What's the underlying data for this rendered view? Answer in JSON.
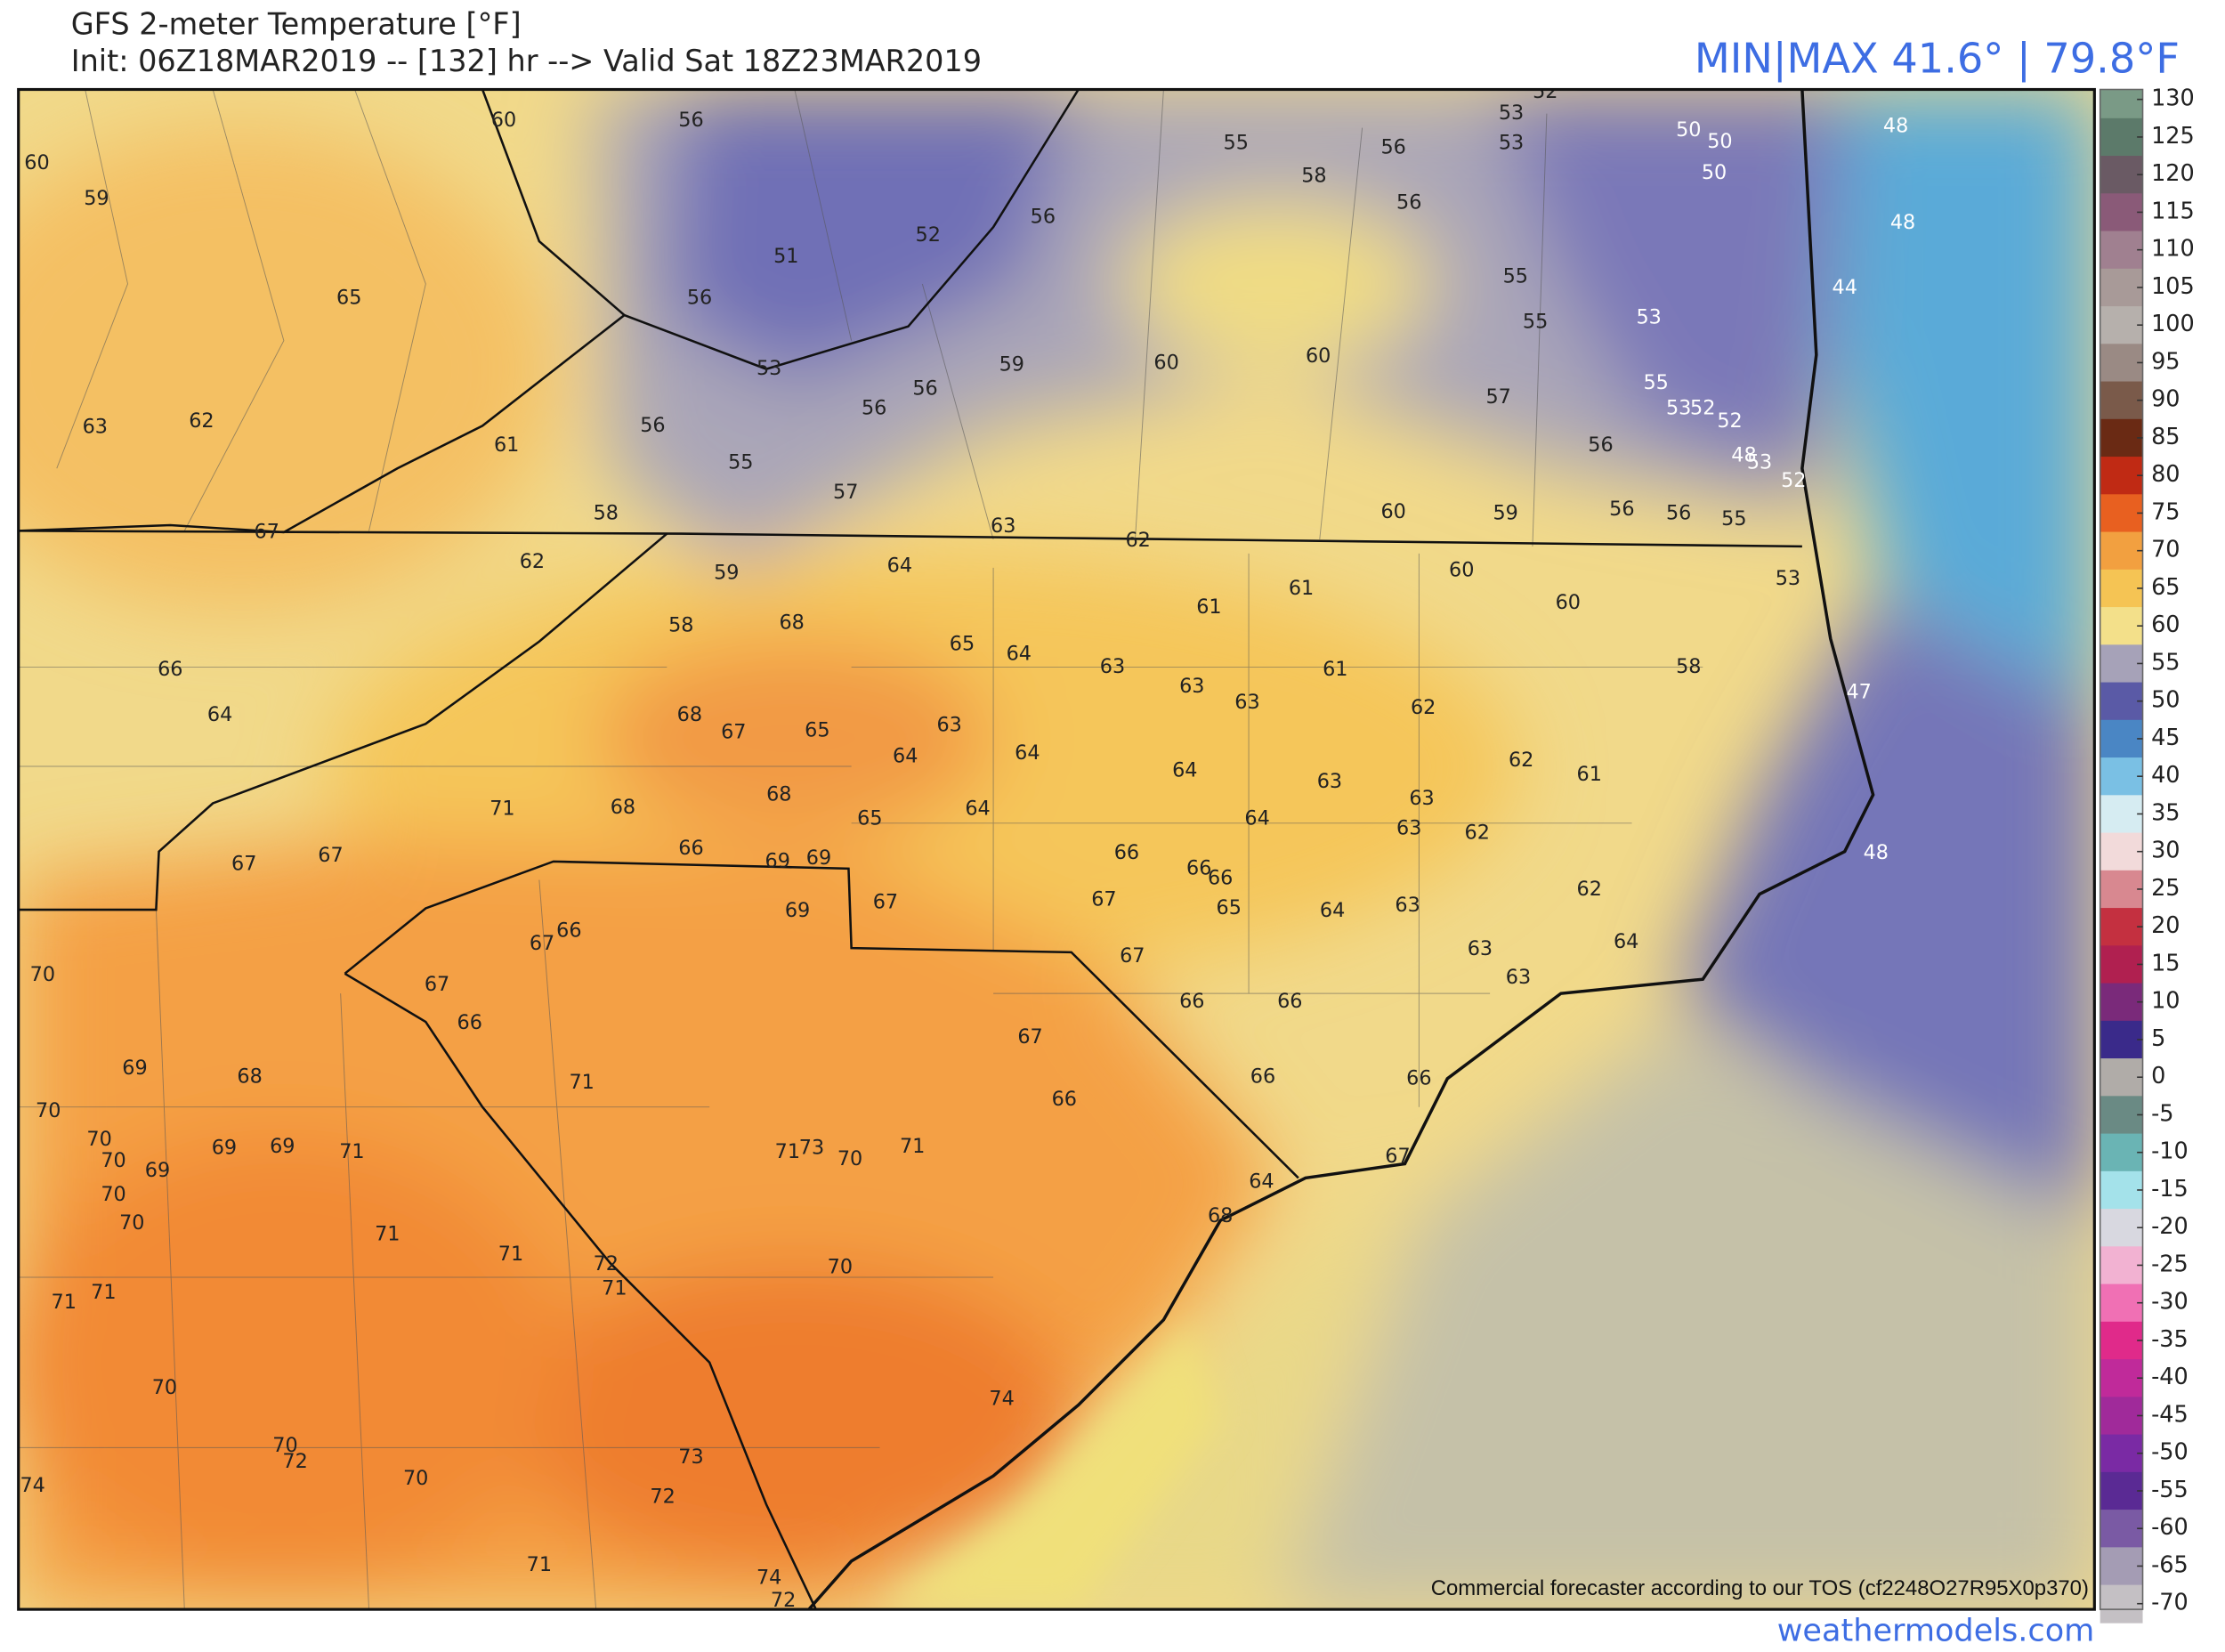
{
  "header": {
    "title": "GFS 2-meter Temperature [°F]",
    "subtitle": "Init: 06Z18MAR2019 -- [132] hr --> Valid Sat 18Z23MAR2019",
    "minmax": "MIN|MAX 41.6° | 79.8°F"
  },
  "map": {
    "temperature_labels": [
      60,
      59,
      60,
      56,
      65,
      56,
      51,
      52,
      56,
      55,
      58,
      56,
      56,
      53,
      53,
      52,
      50,
      50,
      50,
      48,
      48,
      44,
      55,
      55,
      53,
      55,
      53,
      52,
      52,
      48,
      53,
      52,
      55,
      56,
      56,
      56,
      57,
      59,
      60,
      60,
      60,
      59,
      56,
      56,
      53,
      56,
      55,
      57,
      61,
      63,
      62,
      67,
      58,
      62,
      59,
      58,
      64,
      63,
      62,
      60,
      60,
      53,
      61,
      61,
      61,
      62,
      62,
      61,
      63,
      63,
      62,
      63,
      64,
      64,
      63,
      63,
      63,
      64,
      65,
      68,
      68,
      67,
      65,
      63,
      64,
      64,
      64,
      65,
      68,
      68,
      71,
      66,
      69,
      69,
      69,
      67,
      66,
      66,
      66,
      65,
      64,
      63,
      67,
      67,
      66,
      66,
      63,
      63,
      64,
      62,
      47,
      48,
      58,
      66,
      64,
      67,
      67,
      67,
      66,
      67,
      66,
      70,
      69,
      68,
      71,
      70,
      70,
      70,
      69,
      70,
      70,
      69,
      69,
      71,
      71,
      73,
      70,
      71,
      67,
      66,
      66,
      66,
      67,
      64,
      68,
      71,
      71,
      72,
      71,
      70,
      71,
      71,
      70,
      70,
      72,
      70,
      73,
      72,
      74,
      74,
      71,
      74,
      72
    ],
    "colorbar": {
      "ticks": [
        130,
        125,
        120,
        115,
        110,
        105,
        100,
        95,
        90,
        85,
        80,
        75,
        70,
        65,
        60,
        55,
        50,
        45,
        40,
        35,
        30,
        25,
        20,
        15,
        10,
        5,
        0,
        -5,
        -10,
        -15,
        -20,
        -25,
        -30,
        -35,
        -40,
        -45,
        -50,
        -55,
        -60,
        -65,
        -70
      ]
    }
  },
  "footer": {
    "notice": "Commercial forecaster according to our TOS (cf2248O27R95X0p370)",
    "site": "weathermodels.com"
  }
}
